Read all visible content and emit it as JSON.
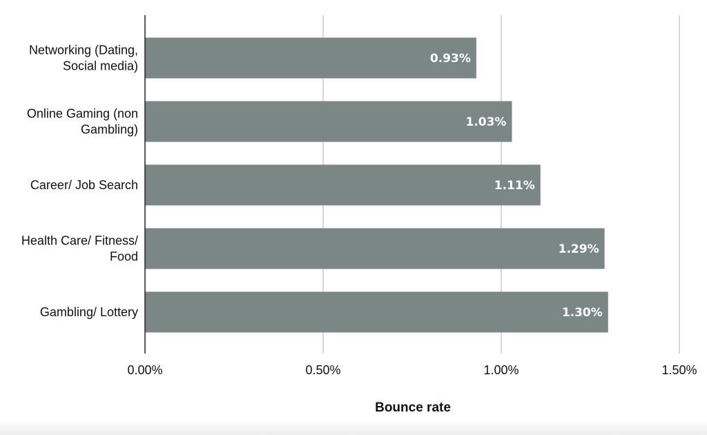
{
  "chart_data": {
    "type": "bar",
    "orientation": "horizontal",
    "categories": [
      [
        "Networking (Dating,",
        "Social media)"
      ],
      [
        "Online Gaming (non",
        "Gambling)"
      ],
      [
        "Career/ Job Search"
      ],
      [
        "Health Care/ Fitness/",
        "Food"
      ],
      [
        "Gambling/ Lottery"
      ]
    ],
    "values": [
      0.93,
      1.03,
      1.11,
      1.29,
      1.3
    ],
    "value_labels": [
      "0.93%",
      "1.03%",
      "1.11%",
      "1.29%",
      "1.30%"
    ],
    "x_ticks": [
      0,
      0.5,
      1.0,
      1.5
    ],
    "x_tick_labels": [
      "0.00%",
      "0.50%",
      "1.00%",
      "1.50%"
    ],
    "xlim": [
      0,
      1.5
    ],
    "xlabel": "Bounce rate",
    "ylabel": "",
    "title": "",
    "grid": true,
    "legend": "none",
    "colors": {
      "bar": "#7b8784",
      "grid": "#cccccc",
      "axis": "#222222",
      "bar_label": "#ffffff"
    }
  }
}
